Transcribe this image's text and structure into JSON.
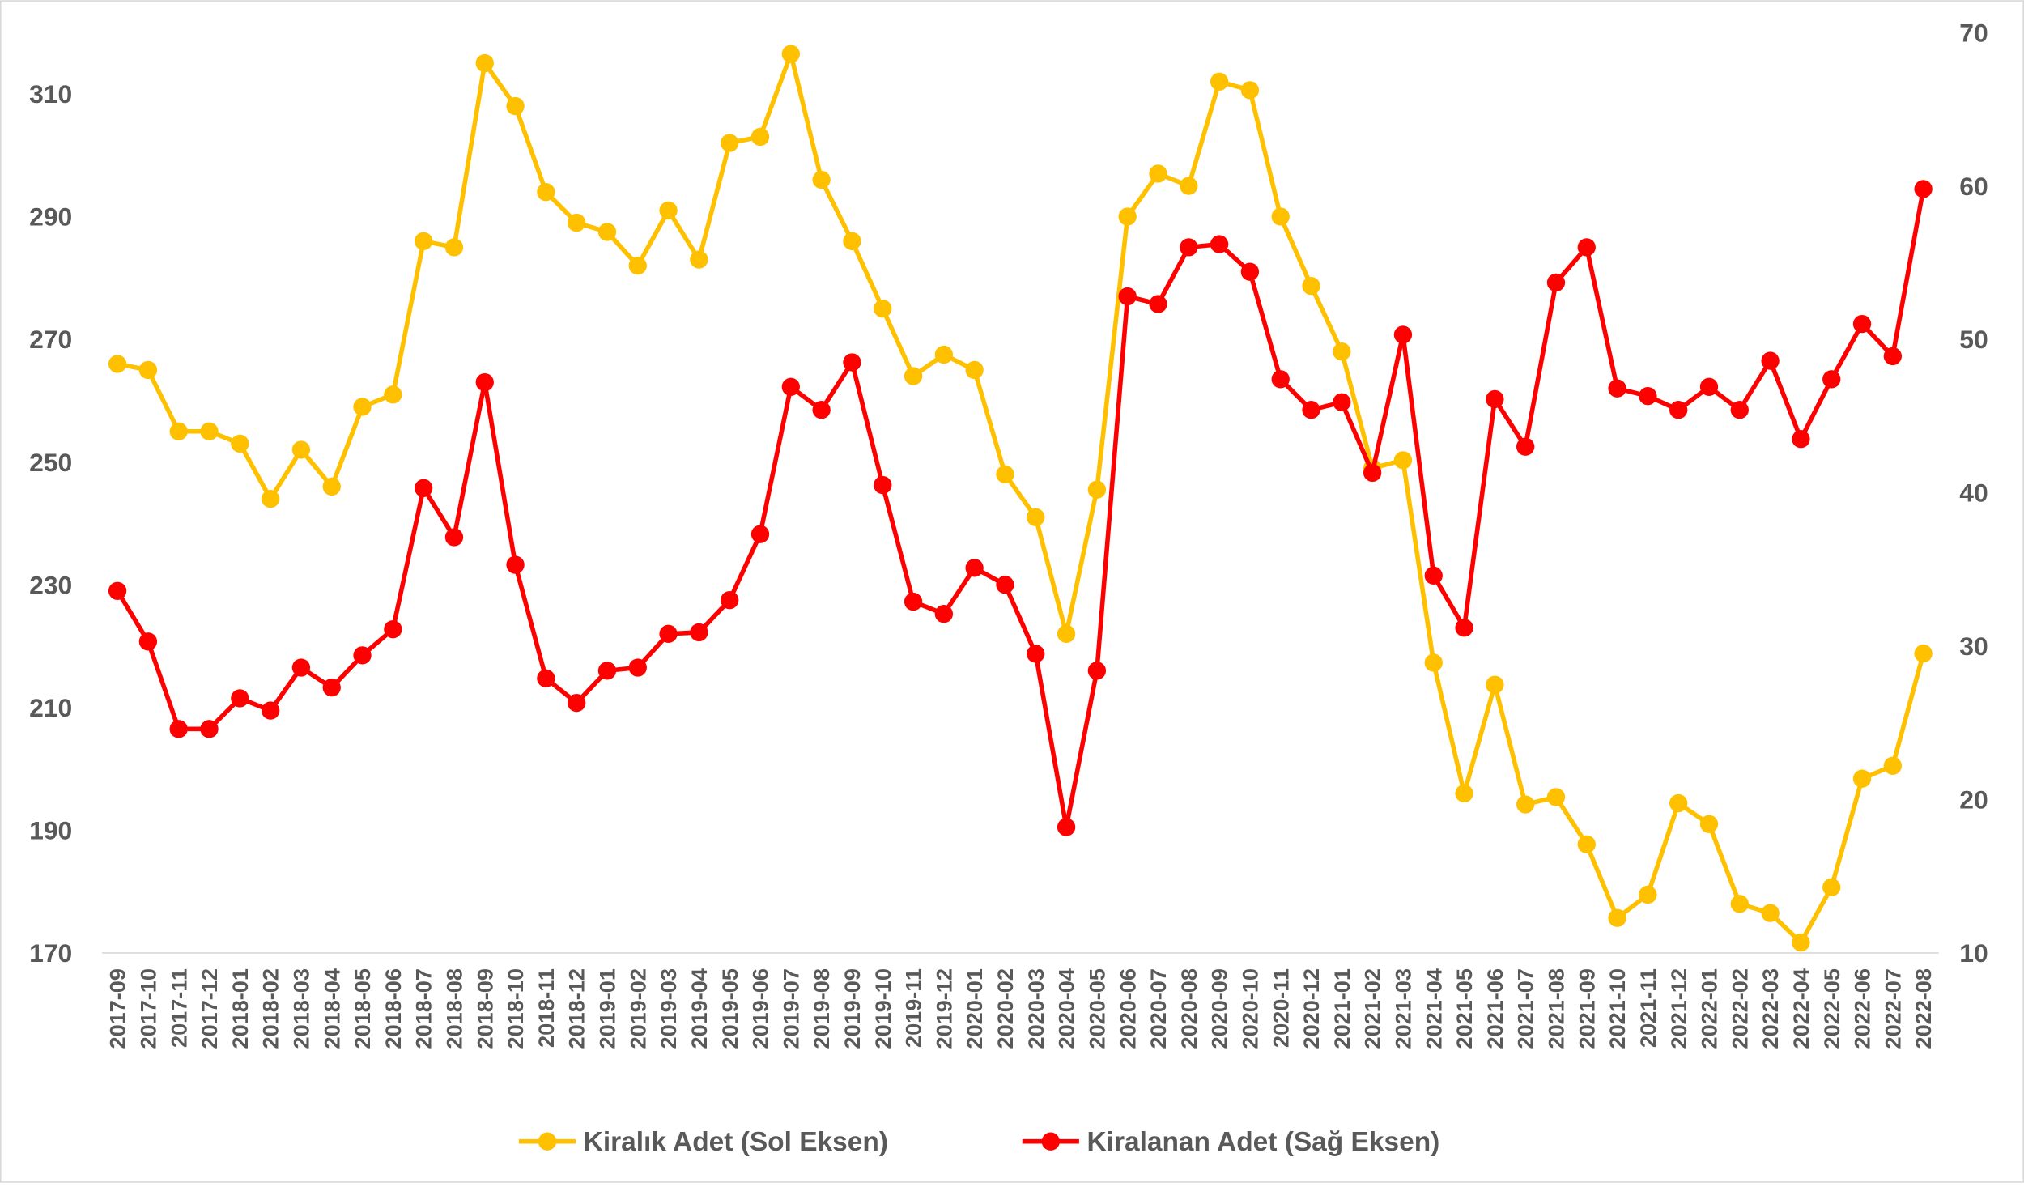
{
  "chart_data": {
    "type": "line",
    "categories": [
      "2017-09",
      "2017-10",
      "2017-11",
      "2017-12",
      "2018-01",
      "2018-02",
      "2018-03",
      "2018-04",
      "2018-05",
      "2018-06",
      "2018-07",
      "2018-08",
      "2018-09",
      "2018-10",
      "2018-11",
      "2018-12",
      "2019-01",
      "2019-02",
      "2019-03",
      "2019-04",
      "2019-05",
      "2019-06",
      "2019-07",
      "2019-08",
      "2019-09",
      "2019-10",
      "2019-11",
      "2019-12",
      "2020-01",
      "2020-02",
      "2020-03",
      "2020-04",
      "2020-05",
      "2020-06",
      "2020-07",
      "2020-08",
      "2020-09",
      "2020-10",
      "2020-11",
      "2020-12",
      "2021-01",
      "2021-02",
      "2021-03",
      "2021-04",
      "2021-05",
      "2021-06",
      "2021-07",
      "2021-08",
      "2021-09",
      "2021-10",
      "2021-11",
      "2021-12",
      "2022-01",
      "2022-02",
      "2022-03",
      "2022-04",
      "2022-05",
      "2022-06",
      "2022-07",
      "2022-08"
    ],
    "series": [
      {
        "name": "Kiralık Adet (Sol Eksen)",
        "color": "#ffc000",
        "values": [
          266,
          265,
          255,
          255,
          253,
          244,
          252,
          246,
          259,
          261,
          286,
          285,
          315,
          308,
          294,
          289,
          287.5,
          282,
          291,
          283,
          302,
          303,
          316.5,
          296,
          286,
          275,
          264,
          267.5,
          265,
          248,
          241,
          222,
          245.5,
          290,
          297,
          295,
          312,
          310.6,
          290,
          278.7,
          268,
          249,
          250.3,
          217.3,
          196,
          213.7,
          194.2,
          195.4,
          187.7,
          175.7,
          179.5,
          194.4,
          191,
          178,
          176.5,
          171.7,
          180.7,
          198.4,
          200.5,
          218.8
        ]
      },
      {
        "name": "Kiralanan Adet (Sağ Eksen)",
        "color": "#ff0000",
        "axis": "y2",
        "values": [
          33.6,
          30.3,
          24.6,
          24.6,
          26.6,
          25.8,
          28.6,
          27.3,
          29.4,
          31.1,
          40.3,
          37.1,
          47.2,
          35.3,
          27.9,
          26.3,
          28.4,
          28.6,
          30.8,
          30.9,
          33.0,
          37.3,
          46.9,
          45.4,
          48.5,
          40.5,
          32.9,
          32.1,
          35.1,
          34.0,
          29.5,
          18.2,
          28.4,
          52.8,
          52.3,
          56.0,
          56.2,
          54.4,
          47.4,
          45.4,
          45.9,
          41.3,
          50.3,
          34.6,
          31.2,
          46.1,
          43.0,
          53.7,
          56.0,
          46.8,
          46.3,
          45.4,
          46.9,
          45.4,
          48.6,
          43.5,
          47.4,
          51.0,
          48.9,
          59.8
        ]
      }
    ],
    "ylim": [
      170,
      320
    ],
    "yticks": [
      170,
      190,
      210,
      230,
      250,
      270,
      290,
      310
    ],
    "y2lim": [
      10,
      70
    ],
    "y2ticks": [
      10,
      20,
      30,
      40,
      50,
      60,
      70
    ],
    "grid": false,
    "legend": "bottom"
  }
}
